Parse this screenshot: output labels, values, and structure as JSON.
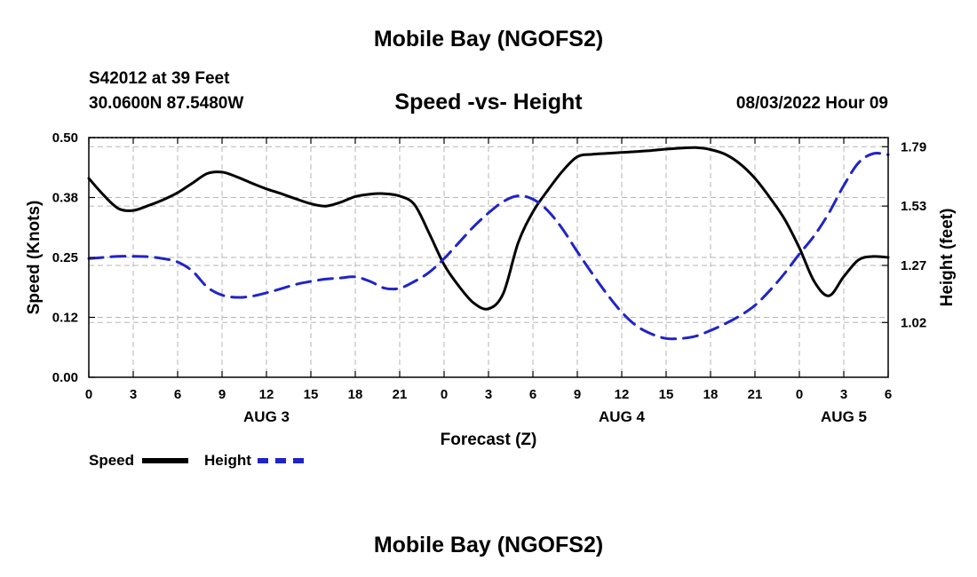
{
  "page": {
    "title": "Mobile Bay (NGOFS2)",
    "footer_title": "Mobile Bay (NGOFS2)",
    "station": "S42012 at 39 Feet",
    "coords": "30.0600N  87.5480W",
    "datetime": "08/03/2022 Hour 09"
  },
  "legend": {
    "speed_label": "Speed",
    "height_label": "Height"
  },
  "chart_data": {
    "type": "line",
    "title": "Speed -vs- Height",
    "xlabel": "Forecast (Z)",
    "ylabel": "Speed (Knots)",
    "y2label": "Height (feet)",
    "x_range": [
      0,
      54
    ],
    "x_ticks": [
      0,
      3,
      6,
      9,
      12,
      15,
      18,
      21,
      24,
      27,
      30,
      33,
      36,
      39,
      42,
      45,
      48,
      51,
      54
    ],
    "x_tick_labels": [
      "0",
      "3",
      "6",
      "9",
      "12",
      "15",
      "18",
      "21",
      "0",
      "3",
      "6",
      "9",
      "12",
      "15",
      "18",
      "21",
      "0",
      "3",
      "6"
    ],
    "day_labels": [
      {
        "label": "AUG 3",
        "x": 12
      },
      {
        "label": "AUG 4",
        "x": 36
      },
      {
        "label": "AUG 5",
        "x": 51
      }
    ],
    "ylim": [
      0,
      0.5
    ],
    "y_ticks": [
      0.0,
      0.125,
      0.25,
      0.375,
      0.5
    ],
    "y_tick_labels": [
      "0.00",
      "0.12",
      "0.25",
      "0.38",
      "0.50"
    ],
    "y2lim": [
      0.78,
      1.83
    ],
    "y2_ticks": [
      1.02,
      1.27,
      1.53,
      1.79
    ],
    "y2_tick_labels": [
      "1.02",
      "1.27",
      "1.53",
      "1.79"
    ],
    "grid": true,
    "series": [
      {
        "name": "Speed",
        "axis": "left",
        "color": "#000000",
        "x": [
          0,
          1,
          2,
          3,
          4,
          5,
          6,
          7,
          8,
          9,
          10,
          11,
          12,
          13,
          14,
          15,
          16,
          17,
          18,
          19,
          20,
          21,
          22,
          23,
          24,
          25,
          26,
          27,
          28,
          29,
          30,
          31,
          32,
          33,
          34,
          35,
          36,
          37,
          38,
          39,
          40,
          41,
          42,
          43,
          44,
          45,
          46,
          47,
          48,
          49,
          50,
          51,
          52,
          53,
          54
        ],
        "values": [
          0.415,
          0.38,
          0.352,
          0.348,
          0.358,
          0.37,
          0.385,
          0.405,
          0.425,
          0.428,
          0.418,
          0.405,
          0.393,
          0.383,
          0.372,
          0.362,
          0.357,
          0.365,
          0.377,
          0.382,
          0.383,
          0.378,
          0.36,
          0.3,
          0.235,
          0.19,
          0.155,
          0.143,
          0.175,
          0.28,
          0.345,
          0.39,
          0.43,
          0.46,
          0.465,
          0.467,
          0.469,
          0.471,
          0.473,
          0.476,
          0.478,
          0.479,
          0.475,
          0.465,
          0.445,
          0.415,
          0.375,
          0.33,
          0.27,
          0.2,
          0.17,
          0.21,
          0.245,
          0.252,
          0.25
        ]
      },
      {
        "name": "Height",
        "axis": "right",
        "color": "#1f24c8",
        "x": [
          0,
          1,
          2,
          3,
          4,
          5,
          6,
          7,
          8,
          9,
          10,
          11,
          12,
          13,
          14,
          15,
          16,
          17,
          18,
          19,
          20,
          21,
          22,
          23,
          24,
          25,
          26,
          27,
          28,
          29,
          30,
          31,
          32,
          33,
          34,
          35,
          36,
          37,
          38,
          39,
          40,
          41,
          42,
          43,
          44,
          45,
          46,
          47,
          48,
          49,
          50,
          51,
          52,
          53,
          54
        ],
        "values": [
          1.3,
          1.305,
          1.31,
          1.31,
          1.308,
          1.3,
          1.285,
          1.245,
          1.175,
          1.14,
          1.13,
          1.135,
          1.15,
          1.168,
          1.187,
          1.2,
          1.21,
          1.215,
          1.22,
          1.2,
          1.17,
          1.17,
          1.2,
          1.24,
          1.3,
          1.37,
          1.44,
          1.5,
          1.55,
          1.575,
          1.56,
          1.51,
          1.43,
          1.33,
          1.235,
          1.145,
          1.065,
          1.005,
          0.97,
          0.95,
          0.95,
          0.96,
          0.985,
          1.015,
          1.05,
          1.095,
          1.16,
          1.235,
          1.32,
          1.4,
          1.5,
          1.62,
          1.72,
          1.76,
          1.755
        ]
      }
    ]
  }
}
